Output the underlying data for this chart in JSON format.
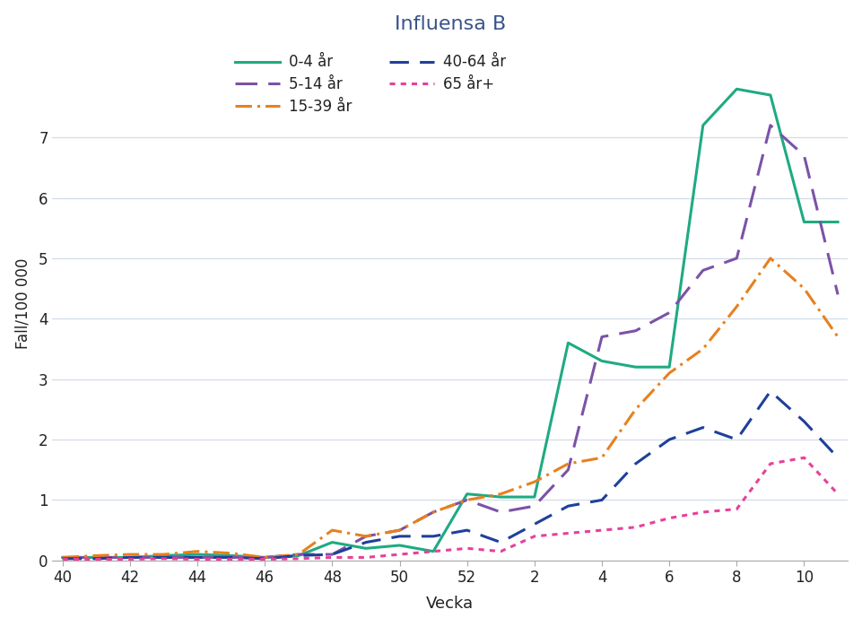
{
  "title": "Influensa B",
  "xlabel": "Vecka",
  "ylabel": "Fall/100 000",
  "ylim": [
    0,
    8.5
  ],
  "yticks": [
    0,
    1,
    2,
    3,
    4,
    5,
    6,
    7
  ],
  "tick_weeks": [
    40,
    42,
    44,
    46,
    48,
    50,
    52,
    2,
    4,
    6,
    8,
    10
  ],
  "background_color": "#ffffff",
  "grid_color": "#d3dce8",
  "title_color": "#3a5488",
  "axis_label_color": "#222222",
  "tick_color": "#222222",
  "series": [
    {
      "label": "0-4 år",
      "color": "#1faa82",
      "linestyle": "solid",
      "linewidth": 2.2,
      "dash_pattern": null,
      "weeks": [
        40,
        41,
        42,
        43,
        44,
        45,
        46,
        47,
        48,
        49,
        50,
        51,
        52,
        1,
        2,
        3,
        4,
        5,
        6,
        7,
        8,
        9,
        10,
        11
      ],
      "vals": [
        0.05,
        0.05,
        0.05,
        0.08,
        0.1,
        0.08,
        0.05,
        0.08,
        0.3,
        0.2,
        0.25,
        0.15,
        1.1,
        1.05,
        1.05,
        3.6,
        3.3,
        3.2,
        3.2,
        7.2,
        7.8,
        7.7,
        5.6,
        5.6
      ]
    },
    {
      "label": "5-14 år",
      "color": "#7b52a8",
      "linestyle": "dashed",
      "linewidth": 2.2,
      "dash_pattern": [
        8,
        4
      ],
      "weeks": [
        40,
        41,
        42,
        43,
        44,
        45,
        46,
        47,
        48,
        49,
        50,
        51,
        52,
        1,
        2,
        3,
        4,
        5,
        6,
        7,
        8,
        9,
        10,
        11
      ],
      "vals": [
        0.05,
        0.05,
        0.05,
        0.05,
        0.05,
        0.05,
        0.05,
        0.1,
        0.1,
        0.4,
        0.5,
        0.8,
        1.0,
        0.8,
        0.9,
        1.5,
        3.7,
        3.8,
        4.1,
        4.8,
        5.0,
        7.2,
        6.7,
        4.4
      ]
    },
    {
      "label": "15-39 år",
      "color": "#e8801e",
      "linestyle": "dashdot",
      "linewidth": 2.2,
      "dash_pattern": null,
      "weeks": [
        40,
        41,
        42,
        43,
        44,
        45,
        46,
        47,
        48,
        49,
        50,
        51,
        52,
        1,
        2,
        3,
        4,
        5,
        6,
        7,
        8,
        9,
        10,
        11
      ],
      "vals": [
        0.05,
        0.08,
        0.1,
        0.1,
        0.15,
        0.12,
        0.05,
        0.1,
        0.5,
        0.4,
        0.5,
        0.8,
        1.0,
        1.1,
        1.3,
        1.6,
        1.7,
        2.5,
        3.1,
        3.5,
        4.2,
        5.0,
        4.5,
        3.7
      ]
    },
    {
      "label": "40-64 år",
      "color": "#1f409a",
      "linestyle": "dashed",
      "linewidth": 2.2,
      "dash_pattern": [
        6,
        3
      ],
      "weeks": [
        40,
        41,
        42,
        43,
        44,
        45,
        46,
        47,
        48,
        49,
        50,
        51,
        52,
        1,
        2,
        3,
        4,
        5,
        6,
        7,
        8,
        9,
        10,
        11
      ],
      "vals": [
        0.03,
        0.03,
        0.05,
        0.05,
        0.05,
        0.05,
        0.03,
        0.08,
        0.1,
        0.3,
        0.4,
        0.4,
        0.5,
        0.3,
        0.6,
        0.9,
        1.0,
        1.6,
        2.0,
        2.2,
        2.0,
        2.8,
        2.3,
        1.7
      ]
    },
    {
      "label": "65 år+",
      "color": "#e8409a",
      "linestyle": "dotted",
      "linewidth": 2.2,
      "dash_pattern": null,
      "weeks": [
        40,
        41,
        42,
        43,
        44,
        45,
        46,
        47,
        48,
        49,
        50,
        51,
        52,
        1,
        2,
        3,
        4,
        5,
        6,
        7,
        8,
        9,
        10,
        11
      ],
      "vals": [
        0.02,
        0.02,
        0.02,
        0.03,
        0.02,
        0.02,
        0.02,
        0.03,
        0.05,
        0.05,
        0.1,
        0.15,
        0.2,
        0.15,
        0.4,
        0.45,
        0.5,
        0.55,
        0.7,
        0.8,
        0.85,
        1.6,
        1.7,
        1.1
      ]
    }
  ]
}
